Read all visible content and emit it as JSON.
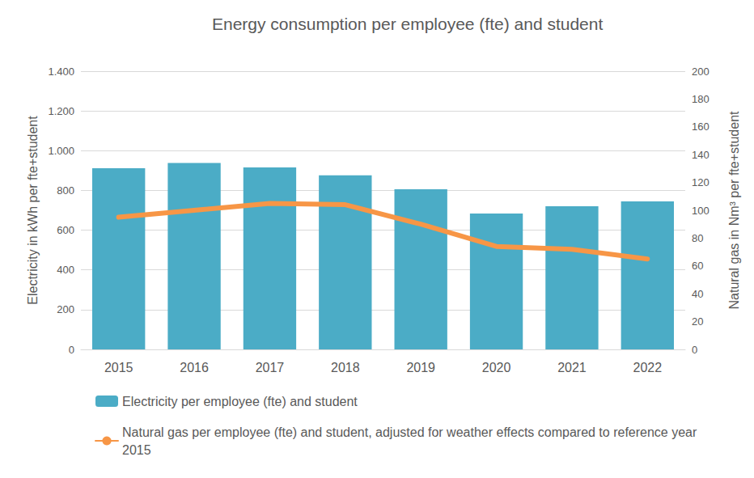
{
  "chart_data": {
    "type": "bar",
    "title": "Energy consumption per employee (fte) and student",
    "categories": [
      "2015",
      "2016",
      "2017",
      "2018",
      "2019",
      "2020",
      "2021",
      "2022"
    ],
    "y_label": "Electricity in kWh per fte+student",
    "y2_label": "Natural gas in Nm³ per fte+student",
    "ylim": [
      0,
      1400
    ],
    "yticks": [
      0,
      200,
      400,
      600,
      800,
      {
        "value": 1000,
        "label": "1.000"
      },
      {
        "value": 1200,
        "label": "1.200"
      },
      {
        "value": 1400,
        "label": "1.400"
      }
    ],
    "y2lim": [
      0,
      200
    ],
    "y2ticks": [
      0,
      20,
      40,
      60,
      80,
      100,
      120,
      140,
      160,
      180,
      200
    ],
    "grid": true,
    "legend": "bottom",
    "series": [
      {
        "name": "Electricity per employee (fte) and student",
        "type": "bar",
        "color": "#4bacc6",
        "values": [
          912,
          938,
          916,
          876,
          806,
          684,
          720,
          745
        ]
      },
      {
        "name": "Natural gas per employee (fte) and student, adjusted for weather effects compared to reference year 2015",
        "type": "line",
        "axis": "y2",
        "color": "#f79646",
        "line_style": "solid",
        "values": [
          95,
          100,
          105,
          104,
          90,
          74,
          72,
          65
        ]
      }
    ]
  }
}
